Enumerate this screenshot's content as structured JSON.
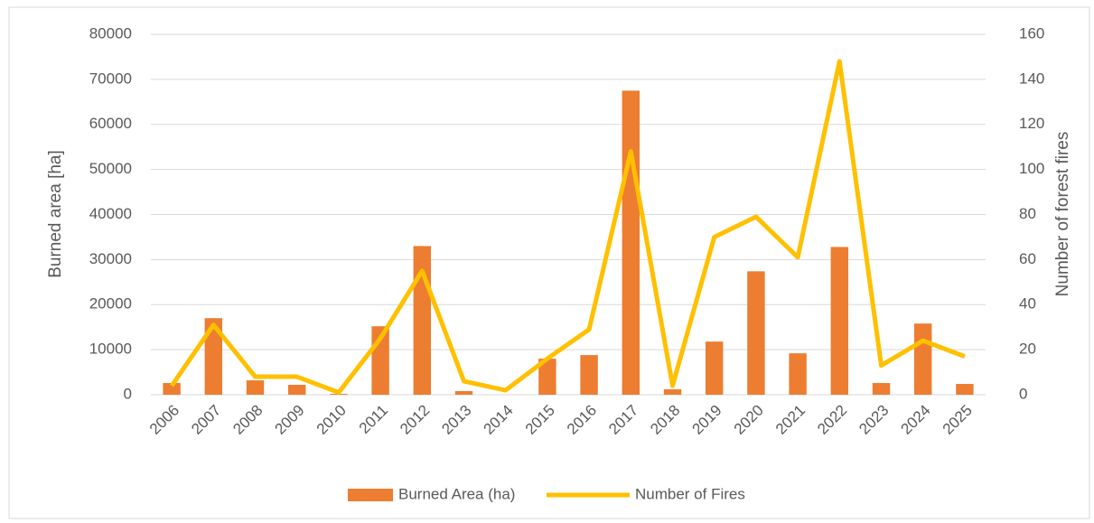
{
  "chart_data": {
    "type": "bar_line",
    "categories": [
      "2006",
      "2007",
      "2008",
      "2009",
      "2010",
      "2011",
      "2012",
      "2013",
      "2014",
      "2015",
      "2016",
      "2017",
      "2018",
      "2019",
      "2020",
      "2021",
      "2022",
      "2023",
      "2024",
      "2025"
    ],
    "series": [
      {
        "name": "Burned Area (ha)",
        "type": "bar",
        "color": "#ed7d31",
        "values": [
          2600,
          17000,
          3200,
          2200,
          200,
          15200,
          33000,
          800,
          0,
          8000,
          8800,
          67500,
          1200,
          11800,
          27400,
          9200,
          32800,
          2600,
          15800,
          2400
        ]
      },
      {
        "name": "Number of Fires",
        "type": "line",
        "axis": "y2",
        "color": "#ffc000",
        "values": [
          4,
          31,
          8,
          8,
          1,
          25,
          55,
          6,
          2,
          16,
          29,
          108,
          4,
          70,
          79,
          61,
          148,
          13,
          24,
          17
        ]
      }
    ],
    "ylabel": "Burned area [ha]",
    "y2label": "Number of forest fires",
    "ylim": [
      0,
      80000
    ],
    "yticks": [
      0,
      10000,
      20000,
      30000,
      40000,
      50000,
      60000,
      70000,
      80000
    ],
    "y2lim": [
      0,
      160
    ],
    "y2ticks": [
      0,
      20,
      40,
      60,
      80,
      100,
      120,
      140,
      160
    ],
    "grid": true,
    "legend": "bottom"
  }
}
